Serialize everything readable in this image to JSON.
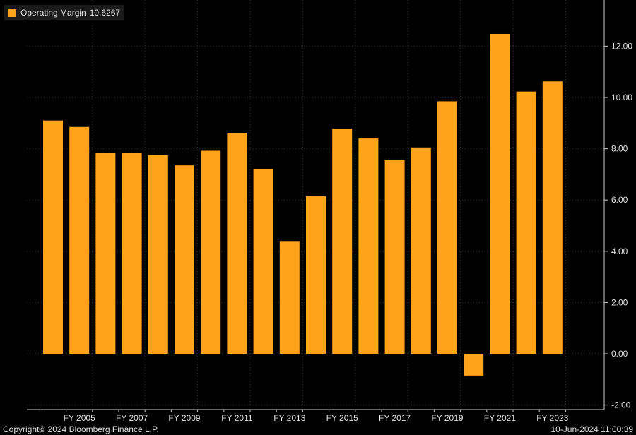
{
  "legend": {
    "label": "Operating Margin",
    "value": "10.6267"
  },
  "footer": {
    "copyright": "Copyright© 2024 Bloomberg Finance L.P.",
    "timestamp": "10-Jun-2024 11:00:39"
  },
  "colors": {
    "bar": "#ffa31a",
    "background": "#000000",
    "grid": "#3c3c3c",
    "axis": "#cfcfcf"
  },
  "chart_data": {
    "type": "bar",
    "title": "",
    "xlabel": "",
    "ylabel": "",
    "ylim": [
      -2,
      13
    ],
    "grid": true,
    "legend_position": "top-left",
    "y_axis_side": "right",
    "yticks": [
      "-2.00",
      "0.00",
      "2.00",
      "4.00",
      "6.00",
      "8.00",
      "10.00",
      "12.00"
    ],
    "x_tick_labels": [
      "FY 2005",
      "FY 2007",
      "FY 2009",
      "FY 2011",
      "FY 2013",
      "FY 2015",
      "FY 2017",
      "FY 2019",
      "FY 2021",
      "FY 2023"
    ],
    "categories": [
      "FY 2004",
      "FY 2005",
      "FY 2006",
      "FY 2007",
      "FY 2008",
      "FY 2009",
      "FY 2010",
      "FY 2011",
      "FY 2012",
      "FY 2013",
      "FY 2014",
      "FY 2015",
      "FY 2016",
      "FY 2017",
      "FY 2018",
      "FY 2019",
      "FY 2020",
      "FY 2021",
      "FY 2022",
      "FY 2023"
    ],
    "series": [
      {
        "name": "Operating Margin",
        "values": [
          9.1,
          8.85,
          7.85,
          7.85,
          7.75,
          7.35,
          7.92,
          8.62,
          7.2,
          4.4,
          6.15,
          8.78,
          8.4,
          7.55,
          8.05,
          9.85,
          -0.85,
          12.48,
          10.23,
          10.6267
        ]
      }
    ]
  }
}
